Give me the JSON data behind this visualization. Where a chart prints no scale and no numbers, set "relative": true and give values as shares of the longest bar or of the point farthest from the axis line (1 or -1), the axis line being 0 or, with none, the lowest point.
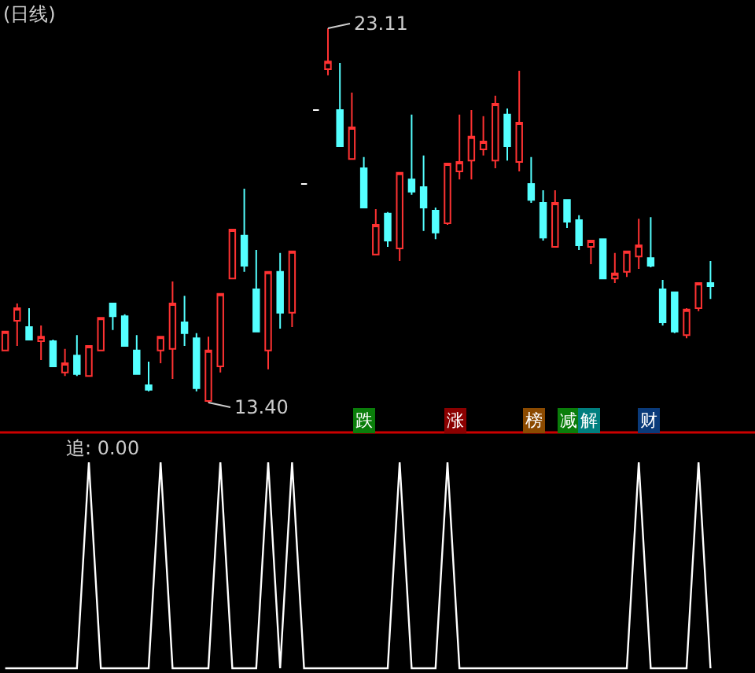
{
  "chart_data": [
    {
      "type": "candlestick",
      "title": "(日线)",
      "tick_labels": false,
      "categories": [
        null,
        null,
        null,
        null,
        null,
        null,
        null,
        null,
        null,
        null,
        null,
        null,
        null,
        null,
        null,
        null,
        null,
        null,
        null,
        null,
        null,
        null,
        null,
        null,
        null,
        null,
        null,
        null,
        null,
        null,
        null,
        null,
        null,
        null,
        null,
        null,
        null,
        null,
        null,
        null,
        null,
        null,
        null,
        null,
        null,
        null,
        null,
        null,
        null,
        null,
        null,
        null,
        null,
        null,
        null,
        null,
        null,
        null,
        null,
        null
      ],
      "ohlc": [
        [
          14.75,
          15.24,
          14.75,
          15.24
        ],
        [
          15.52,
          15.97,
          14.87,
          15.85
        ],
        [
          15.36,
          15.85,
          15.03,
          15.03
        ],
        [
          14.99,
          15.4,
          14.5,
          15.11
        ],
        [
          14.99,
          15.03,
          14.34,
          14.34
        ],
        [
          14.18,
          14.79,
          14.09,
          14.42
        ],
        [
          14.62,
          15.15,
          14.09,
          14.14
        ],
        [
          14.09,
          14.87,
          14.09,
          14.87
        ],
        [
          14.75,
          15.6,
          14.75,
          15.6
        ],
        [
          15.97,
          15.97,
          15.28,
          15.64
        ],
        [
          15.64,
          15.69,
          14.87,
          14.87
        ],
        [
          14.75,
          15.15,
          14.14,
          14.14
        ],
        [
          13.85,
          14.46,
          13.69,
          13.73
        ],
        [
          14.75,
          15.11,
          14.42,
          15.11
        ],
        [
          14.79,
          16.54,
          14.01,
          15.97
        ],
        [
          15.48,
          16.17,
          14.87,
          15.2
        ],
        [
          15.07,
          15.2,
          13.69,
          13.77
        ],
        [
          13.44,
          15.11,
          13.4,
          14.75
        ],
        [
          14.34,
          16.22,
          14.18,
          16.22
        ],
        [
          16.62,
          17.89,
          16.62,
          17.89
        ],
        [
          17.73,
          18.95,
          16.79,
          16.95
        ],
        [
          16.34,
          17.36,
          15.24,
          15.24
        ],
        [
          14.75,
          16.79,
          14.26,
          16.79
        ],
        [
          16.79,
          17.28,
          15.32,
          15.73
        ],
        [
          15.73,
          17.32,
          15.36,
          17.32
        ],
        [
          19.07,
          19.07,
          19.07,
          19.07
        ],
        [
          20.99,
          20.99,
          20.99,
          20.99
        ],
        [
          22.05,
          23.11,
          21.89,
          22.25
        ],
        [
          20.99,
          22.21,
          20.05,
          20.05
        ],
        [
          19.72,
          21.44,
          19.72,
          20.54
        ],
        [
          19.48,
          19.77,
          18.46,
          18.46
        ],
        [
          17.24,
          18.42,
          17.24,
          18.01
        ],
        [
          18.3,
          18.34,
          17.44,
          17.6
        ],
        [
          17.4,
          19.36,
          17.07,
          19.36
        ],
        [
          19.19,
          20.87,
          18.79,
          18.87
        ],
        [
          18.99,
          19.81,
          17.85,
          18.46
        ],
        [
          18.38,
          18.46,
          17.64,
          17.81
        ],
        [
          18.05,
          19.6,
          18.01,
          19.6
        ],
        [
          19.4,
          20.87,
          19.19,
          19.64
        ],
        [
          19.68,
          20.99,
          19.19,
          20.3
        ],
        [
          19.97,
          20.83,
          19.81,
          20.17
        ],
        [
          19.68,
          21.36,
          19.48,
          21.15
        ],
        [
          20.87,
          21.03,
          19.68,
          20.05
        ],
        [
          19.64,
          22.01,
          19.4,
          20.66
        ],
        [
          19.07,
          19.77,
          18.58,
          18.66
        ],
        [
          18.58,
          18.91,
          17.6,
          17.68
        ],
        [
          17.44,
          18.91,
          17.44,
          18.58
        ],
        [
          18.66,
          18.66,
          17.93,
          18.09
        ],
        [
          18.13,
          18.26,
          17.36,
          17.48
        ],
        [
          17.44,
          17.6,
          16.99,
          17.6
        ],
        [
          17.64,
          17.64,
          16.62,
          16.62
        ],
        [
          16.62,
          17.28,
          16.5,
          16.75
        ],
        [
          16.79,
          17.32,
          16.66,
          17.32
        ],
        [
          17.19,
          18.17,
          16.87,
          17.48
        ],
        [
          17.15,
          18.21,
          16.91,
          16.95
        ],
        [
          16.34,
          16.58,
          15.4,
          15.48
        ],
        [
          16.26,
          16.26,
          15.2,
          15.24
        ],
        [
          15.15,
          15.85,
          15.07,
          15.81
        ],
        [
          15.85,
          16.5,
          15.77,
          16.5
        ],
        [
          16.5,
          17.07,
          16.09,
          16.42
        ]
      ],
      "colors": [
        "#ff3232",
        "#ff3232",
        "#54ffff",
        "#ff3232",
        "#54ffff",
        "#ff3232",
        "#54ffff",
        "#ff3232",
        "#ff3232",
        "#54ffff",
        "#54ffff",
        "#54ffff",
        "#54ffff",
        "#ff3232",
        "#ff3232",
        "#54ffff",
        "#54ffff",
        "#ff3232",
        "#ff3232",
        "#ff3232",
        "#54ffff",
        "#54ffff",
        "#ff3232",
        "#54ffff",
        "#ff3232",
        "#ffffff",
        "#ffffff",
        "#ff3232",
        "#54ffff",
        "#ff3232",
        "#54ffff",
        "#ff3232",
        "#54ffff",
        "#ff3232",
        "#54ffff",
        "#54ffff",
        "#54ffff",
        "#ff3232",
        "#ff3232",
        "#ff3232",
        "#ff3232",
        "#ff3232",
        "#54ffff",
        "#ff3232",
        "#54ffff",
        "#54ffff",
        "#ff3232",
        "#54ffff",
        "#54ffff",
        "#ff3232",
        "#54ffff",
        "#ff3232",
        "#ff3232",
        "#ff3232",
        "#54ffff",
        "#54ffff",
        "#54ffff",
        "#ff3232",
        "#ff3232",
        "#54ffff"
      ],
      "annotations": [
        "23.11",
        "13.40",
        "跌",
        "涨",
        "榜",
        "减",
        "解",
        "财"
      ]
    },
    {
      "type": "line",
      "title": "追: 0.00",
      "relative": true,
      "tick_labels": false,
      "categories": [
        null,
        null,
        null,
        null,
        null,
        null,
        null,
        null,
        null,
        null,
        null,
        null,
        null,
        null,
        null,
        null,
        null,
        null,
        null,
        null,
        null,
        null,
        null,
        null,
        null,
        null,
        null,
        null,
        null,
        null,
        null,
        null,
        null,
        null,
        null,
        null,
        null,
        null,
        null,
        null,
        null,
        null,
        null,
        null,
        null,
        null,
        null,
        null,
        null,
        null,
        null,
        null,
        null,
        null,
        null,
        null,
        null,
        null,
        null,
        null
      ],
      "series": [
        {
          "color": "#ffffff",
          "values": [
            0,
            0,
            0,
            0,
            0,
            0,
            0,
            1,
            0,
            0,
            0,
            0,
            0,
            1,
            0,
            0,
            0,
            0,
            1,
            0,
            0,
            0,
            1,
            0,
            1,
            0,
            0,
            0,
            0,
            0,
            0,
            0,
            0,
            1,
            0,
            0,
            0,
            1,
            0,
            0,
            0,
            0,
            0,
            0,
            0,
            0,
            0,
            0,
            0,
            0,
            0,
            0,
            0,
            1,
            0,
            0,
            0,
            0,
            1,
            0
          ]
        }
      ]
    }
  ]
}
